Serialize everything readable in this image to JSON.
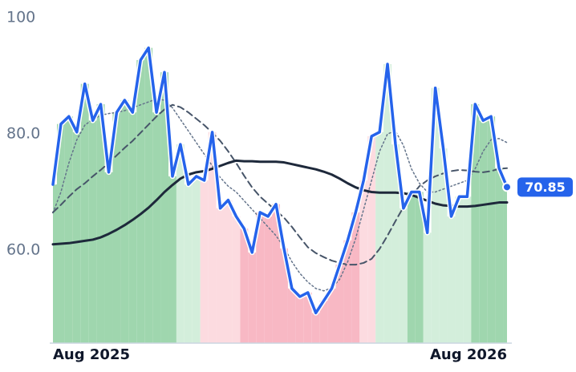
{
  "chart_data": {
    "type": "line",
    "x": [
      0,
      1,
      2,
      3,
      4,
      5,
      6,
      7,
      8,
      9,
      10,
      11,
      12,
      13,
      14,
      15,
      16,
      17,
      18,
      19,
      20,
      21,
      22,
      23,
      24,
      25,
      26,
      27,
      28,
      29,
      30,
      31,
      32,
      33,
      34,
      35,
      36,
      37,
      38,
      39,
      40,
      41,
      42,
      43,
      44,
      45,
      46,
      47,
      48,
      49,
      50,
      51,
      52,
      53,
      54,
      55,
      56,
      57
    ],
    "xlim": [
      0,
      57
    ],
    "xticks": [
      {
        "value": 0,
        "label": "Aug 2025"
      },
      {
        "value": 57,
        "label": "Aug 2026"
      }
    ],
    "ylim": [
      44,
      100
    ],
    "yticks": [
      {
        "value": 60,
        "label": "60.0"
      },
      {
        "value": 80,
        "label": "80.0"
      },
      100
    ],
    "series": [
      {
        "color": "#2563eb",
        "width": 3.5,
        "dash": "none",
        "fill": true,
        "values": [
          71.3,
          81.7,
          83.0,
          80.3,
          88.6,
          82.3,
          85.1,
          73.4,
          83.7,
          85.8,
          83.7,
          92.7,
          94.8,
          83.7,
          90.6,
          72.7,
          78.2,
          71.3,
          72.7,
          72.0,
          80.3,
          67.2,
          68.6,
          65.8,
          63.7,
          59.6,
          66.5,
          65.8,
          67.9,
          60.3,
          53.4,
          52.0,
          52.7,
          49.2,
          51.3,
          53.4,
          57.5,
          61.7,
          66.5,
          72.0,
          79.6,
          80.3,
          92.0,
          78.2,
          67.2,
          70.0,
          70.0,
          63.0,
          87.9,
          77.5,
          65.8,
          69.2,
          69.2,
          85.1,
          82.3,
          83.0,
          74.1,
          70.85
        ]
      },
      {
        "color": "#1e293b",
        "width": 3,
        "dash": "none",
        "fill": false,
        "values": [
          61.0,
          61.1,
          61.2,
          61.4,
          61.6,
          61.8,
          62.2,
          62.8,
          63.5,
          64.3,
          65.2,
          66.2,
          67.3,
          68.6,
          70.0,
          71.2,
          72.3,
          73.0,
          73.4,
          73.6,
          74.0,
          74.5,
          75.0,
          75.4,
          75.3,
          75.3,
          75.2,
          75.2,
          75.2,
          75.1,
          74.8,
          74.5,
          74.2,
          73.9,
          73.5,
          73.0,
          72.3,
          71.5,
          70.8,
          70.3,
          70.0,
          69.9,
          69.9,
          69.9,
          69.8,
          69.5,
          69.0,
          68.5,
          68.0,
          67.7,
          67.6,
          67.5,
          67.5,
          67.6,
          67.8,
          68.0,
          68.2,
          68.2
        ]
      },
      {
        "color": "#475569",
        "width": 2,
        "dash": "8 5",
        "fill": false,
        "values": [
          66.5,
          67.8,
          69.2,
          70.5,
          71.5,
          72.7,
          73.8,
          75.0,
          76.3,
          77.6,
          78.8,
          80.2,
          81.6,
          83.0,
          84.2,
          85.0,
          84.6,
          83.7,
          82.6,
          81.5,
          80.2,
          78.8,
          77.0,
          75.0,
          72.8,
          70.8,
          69.2,
          68.0,
          66.8,
          65.6,
          64.0,
          62.2,
          60.5,
          59.5,
          58.8,
          58.2,
          57.8,
          57.5,
          57.5,
          57.8,
          58.5,
          60.2,
          62.5,
          65.0,
          67.4,
          69.3,
          71.0,
          72.0,
          72.7,
          73.2,
          73.6,
          73.8,
          73.7,
          73.5,
          73.4,
          73.6,
          74.0,
          74.1
        ]
      },
      {
        "color": "#64748b",
        "width": 1.5,
        "dash": "2 3",
        "fill": false,
        "values": [
          66.4,
          70,
          75,
          79,
          81.5,
          82.5,
          83.2,
          83.5,
          83.7,
          84,
          84.5,
          85,
          85.5,
          86,
          85.8,
          84.5,
          82.5,
          80.5,
          78.5,
          76.5,
          74.5,
          72.5,
          71,
          70,
          68.5,
          67,
          65.5,
          64,
          62.5,
          60.5,
          58,
          56,
          54.5,
          53.4,
          53,
          53.5,
          55,
          58,
          62,
          67,
          72,
          77,
          80,
          80.5,
          78,
          74,
          71.5,
          70,
          70,
          70.5,
          71,
          71.5,
          72,
          74,
          77,
          79,
          79.2,
          78.5
        ]
      }
    ],
    "bands": [
      {
        "from": 0,
        "to": 15,
        "color": "#9fd6ae"
      },
      {
        "from": 16,
        "to": 18,
        "color": "#d3eedb"
      },
      {
        "from": 19,
        "to": 23,
        "color": "#fcdbe0"
      },
      {
        "from": 24,
        "to": 38,
        "color": "#f8b8c4"
      },
      {
        "from": 39,
        "to": 40,
        "color": "#fcdbe0"
      },
      {
        "from": 41,
        "to": 44,
        "color": "#d3eedb"
      },
      {
        "from": 45,
        "to": 46,
        "color": "#9fd6ae"
      },
      {
        "from": 47,
        "to": 52,
        "color": "#d3eedb"
      },
      {
        "from": 53,
        "to": 57,
        "color": "#9fd6ae"
      }
    ]
  }
}
